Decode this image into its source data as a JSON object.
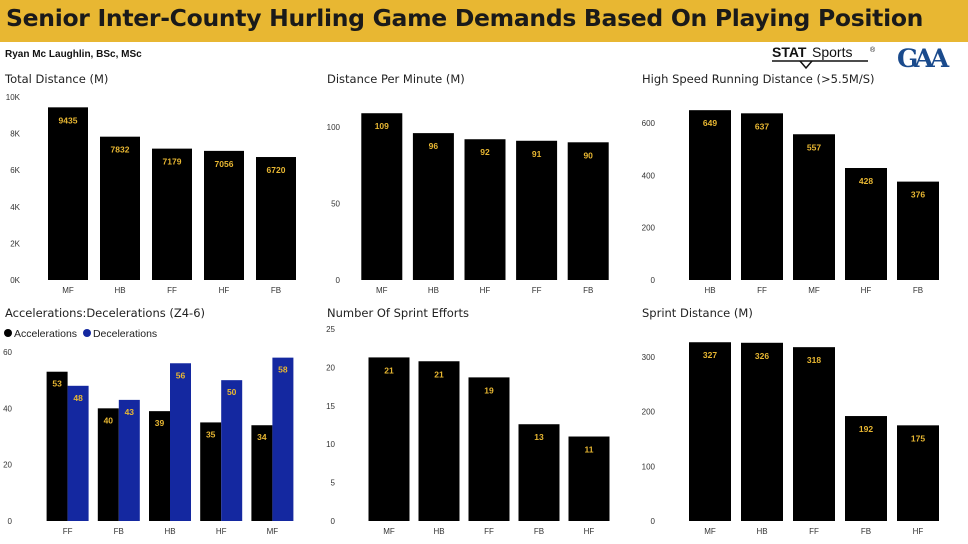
{
  "header": {
    "title": "Senior Inter-County Hurling Game Demands Based On Playing Position",
    "author": "Ryan Mc Laughlin, BSc, MSc",
    "logo_statsports": "STATSports",
    "logo_gaa": "GAA"
  },
  "colors": {
    "banner": "#e8b732",
    "bar": "#000000",
    "label": "#e8b732",
    "accelerations": "#000000",
    "decelerations": "#1428a0"
  },
  "chart_data": [
    {
      "id": "total-distance",
      "type": "bar",
      "title": "Total Distance (M)",
      "categories": [
        "MF",
        "HB",
        "FF",
        "HF",
        "FB"
      ],
      "series": [
        {
          "values": [
            9435,
            7832,
            7179,
            7056,
            6720
          ]
        }
      ],
      "ylim": [
        0,
        10000
      ],
      "yticks": [
        0,
        2000,
        4000,
        6000,
        8000,
        10000
      ],
      "yticklabels": [
        "0K",
        "2K",
        "4K",
        "6K",
        "8K",
        "10K"
      ],
      "data_labels": [
        "9435",
        "7832",
        "7179",
        "7056",
        "6720"
      ]
    },
    {
      "id": "distance-per-minute",
      "type": "bar",
      "title": "Distance Per Minute (M)",
      "categories": [
        "MF",
        "HB",
        "HF",
        "FF",
        "FB"
      ],
      "series": [
        {
          "values": [
            109,
            96,
            92,
            91,
            90
          ]
        }
      ],
      "ylim": [
        0,
        115
      ],
      "yticks": [
        0,
        50,
        100
      ],
      "yticklabels": [
        "0",
        "50",
        "100"
      ],
      "data_labels": [
        "109",
        "96",
        "92",
        "91",
        "90"
      ]
    },
    {
      "id": "high-speed-running",
      "type": "bar",
      "title": "High Speed Running Distance (>5.5M/S)",
      "categories": [
        "HB",
        "FF",
        "MF",
        "HF",
        "FB"
      ],
      "series": [
        {
          "values": [
            649,
            637,
            557,
            428,
            376
          ]
        }
      ],
      "ylim": [
        0,
        680
      ],
      "yticks": [
        0,
        200,
        400,
        600
      ],
      "yticklabels": [
        "0",
        "200",
        "400",
        "600"
      ],
      "data_labels": [
        "649",
        "637",
        "557",
        "428",
        "376"
      ]
    },
    {
      "id": "acc-dec",
      "type": "bar",
      "title": "Accelerations:Decelerations (Z4-6)",
      "categories": [
        "FF",
        "FB",
        "HB",
        "HF",
        "MF"
      ],
      "series": [
        {
          "name": "Accelerations",
          "values": [
            53,
            40,
            39,
            35,
            34
          ]
        },
        {
          "name": "Decelerations",
          "values": [
            48,
            43,
            56,
            50,
            58
          ]
        }
      ],
      "ylim": [
        0,
        60
      ],
      "yticks": [
        0,
        20,
        40,
        60
      ],
      "yticklabels": [
        "0",
        "20",
        "40",
        "60"
      ],
      "data_labels": [
        [
          "53",
          "40",
          "39",
          "35",
          "34"
        ],
        [
          "48",
          "43",
          "56",
          "50",
          "58"
        ]
      ],
      "legend": "top-left"
    },
    {
      "id": "sprint-efforts",
      "type": "bar",
      "title": "Number Of Sprint Efforts",
      "categories": [
        "MF",
        "HB",
        "FF",
        "FB",
        "HF"
      ],
      "series": [
        {
          "values": [
            21.3,
            20.8,
            18.7,
            12.6,
            11
          ]
        }
      ],
      "ylim": [
        0,
        25
      ],
      "yticks": [
        0,
        5,
        10,
        15,
        20,
        25
      ],
      "yticklabels": [
        "0",
        "5",
        "10",
        "15",
        "20",
        "25"
      ],
      "data_labels": [
        "21",
        "21",
        "19",
        "13",
        "11"
      ]
    },
    {
      "id": "sprint-distance",
      "type": "bar",
      "title": "Sprint Distance (M)",
      "categories": [
        "MF",
        "HB",
        "FF",
        "FB",
        "HF"
      ],
      "series": [
        {
          "values": [
            327,
            326,
            318,
            192,
            175
          ]
        }
      ],
      "ylim": [
        0,
        340
      ],
      "yticks": [
        0,
        100,
        200,
        300
      ],
      "yticklabels": [
        "0",
        "100",
        "200",
        "300"
      ],
      "data_labels": [
        "327",
        "326",
        "318",
        "192",
        "175"
      ]
    }
  ]
}
